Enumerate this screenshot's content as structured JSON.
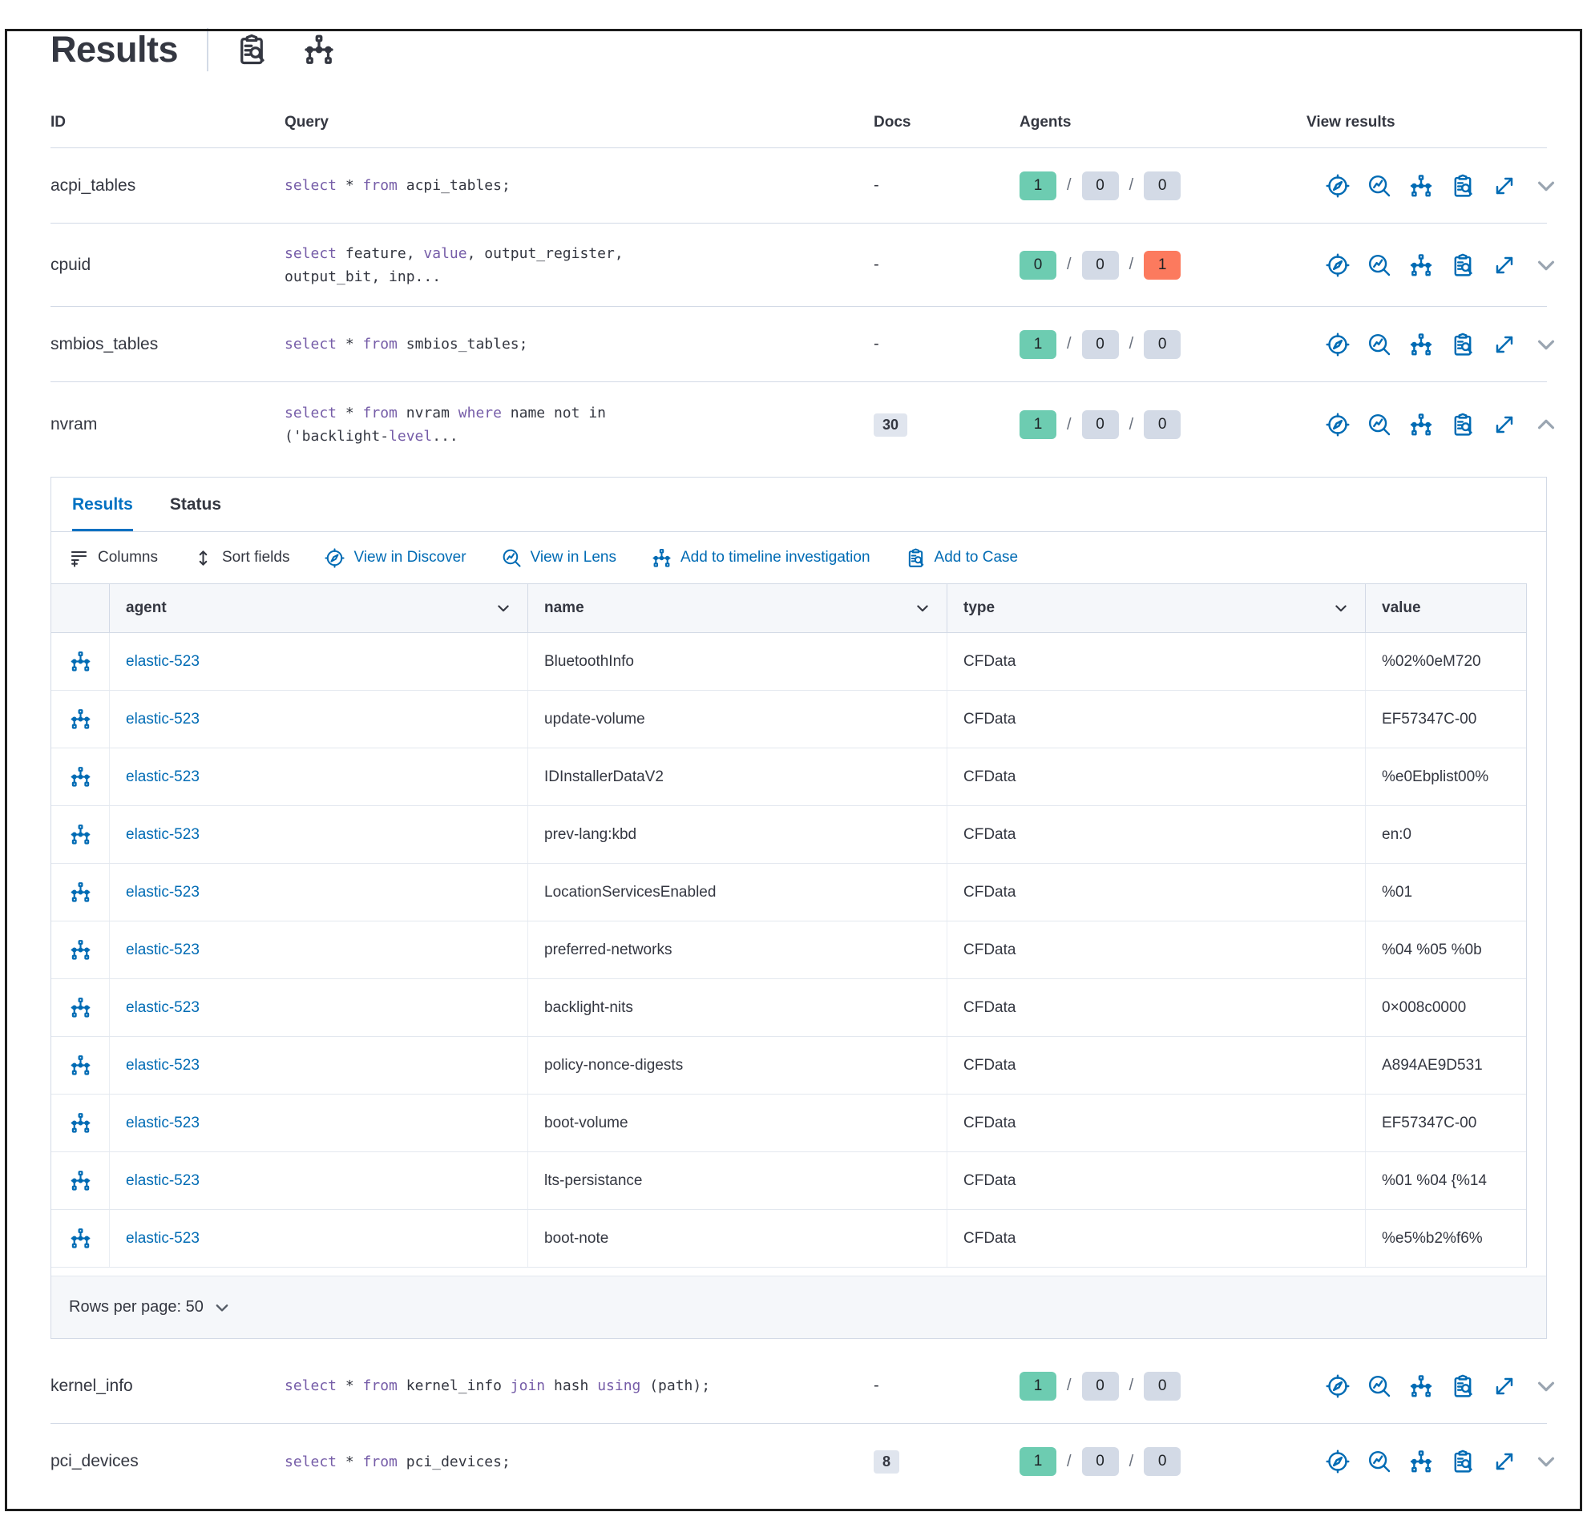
{
  "header": {
    "title": "Results",
    "icons": [
      "inspect-icon",
      "timeline-icon"
    ]
  },
  "table": {
    "columns": [
      "ID",
      "Query",
      "Docs",
      "Agents",
      "View results"
    ],
    "agents_separator": "/"
  },
  "view_results": {
    "icons": [
      "discover-compass-icon",
      "lens-icon",
      "timeline-icon",
      "add-to-case-icon",
      "expand-icon"
    ]
  },
  "queries": [
    {
      "id": "acpi_tables",
      "query_lines": [
        [
          {
            "k": "kw",
            "t": "select"
          },
          {
            "k": "tx",
            "t": " * "
          },
          {
            "k": "kw",
            "t": "from"
          },
          {
            "k": "tx",
            "t": " acpi_tables;"
          }
        ]
      ],
      "docs": {
        "text": "-",
        "badge": false
      },
      "agents": [
        {
          "count": "1",
          "color": "green"
        },
        {
          "count": "0",
          "color": "gray"
        },
        {
          "count": "0",
          "color": "gray"
        }
      ],
      "chevron": "down"
    },
    {
      "id": "cpuid",
      "query_lines": [
        [
          {
            "k": "kw",
            "t": "select"
          },
          {
            "k": "tx",
            "t": " feature, "
          },
          {
            "k": "kw",
            "t": "value"
          },
          {
            "k": "tx",
            "t": ", output_register,"
          }
        ],
        [
          {
            "k": "tx",
            "t": "output_bit, inp..."
          }
        ]
      ],
      "docs": {
        "text": "-",
        "badge": false
      },
      "agents": [
        {
          "count": "0",
          "color": "green"
        },
        {
          "count": "0",
          "color": "gray"
        },
        {
          "count": "1",
          "color": "red"
        }
      ],
      "chevron": "down"
    },
    {
      "id": "smbios_tables",
      "query_lines": [
        [
          {
            "k": "kw",
            "t": "select"
          },
          {
            "k": "tx",
            "t": " * "
          },
          {
            "k": "kw",
            "t": "from"
          },
          {
            "k": "tx",
            "t": " smbios_tables;"
          }
        ]
      ],
      "docs": {
        "text": "-",
        "badge": false
      },
      "agents": [
        {
          "count": "1",
          "color": "green"
        },
        {
          "count": "0",
          "color": "gray"
        },
        {
          "count": "0",
          "color": "gray"
        }
      ],
      "chevron": "down"
    },
    {
      "id": "nvram",
      "query_lines": [
        [
          {
            "k": "kw",
            "t": "select"
          },
          {
            "k": "tx",
            "t": " * "
          },
          {
            "k": "kw",
            "t": "from"
          },
          {
            "k": "tx",
            "t": " nvram "
          },
          {
            "k": "kw",
            "t": "where"
          },
          {
            "k": "tx",
            "t": " name not in"
          }
        ],
        [
          {
            "k": "tx",
            "t": "('backlight-"
          },
          {
            "k": "kw",
            "t": "level"
          },
          {
            "k": "tx",
            "t": "..."
          }
        ]
      ],
      "docs": {
        "text": "30",
        "badge": true
      },
      "agents": [
        {
          "count": "1",
          "color": "green"
        },
        {
          "count": "0",
          "color": "gray"
        },
        {
          "count": "0",
          "color": "gray"
        }
      ],
      "chevron": "up"
    },
    {
      "id": "kernel_info",
      "query_lines": [
        [
          {
            "k": "kw",
            "t": "select"
          },
          {
            "k": "tx",
            "t": " * "
          },
          {
            "k": "kw",
            "t": "from"
          },
          {
            "k": "tx",
            "t": " kernel_info "
          },
          {
            "k": "kw",
            "t": "join"
          },
          {
            "k": "tx",
            "t": " hash "
          },
          {
            "k": "kw",
            "t": "using"
          },
          {
            "k": "tx",
            "t": " (path);"
          }
        ]
      ],
      "docs": {
        "text": "-",
        "badge": false
      },
      "agents": [
        {
          "count": "1",
          "color": "green"
        },
        {
          "count": "0",
          "color": "gray"
        },
        {
          "count": "0",
          "color": "gray"
        }
      ],
      "chevron": "down"
    },
    {
      "id": "pci_devices",
      "query_lines": [
        [
          {
            "k": "kw",
            "t": "select"
          },
          {
            "k": "tx",
            "t": " * "
          },
          {
            "k": "kw",
            "t": "from"
          },
          {
            "k": "tx",
            "t": " pci_devices;"
          }
        ]
      ],
      "docs": {
        "text": "8",
        "badge": true
      },
      "agents": [
        {
          "count": "1",
          "color": "green"
        },
        {
          "count": "0",
          "color": "gray"
        },
        {
          "count": "0",
          "color": "gray"
        }
      ],
      "chevron": "down"
    }
  ],
  "panel": {
    "tabs": [
      {
        "label": "Results",
        "active": true
      },
      {
        "label": "Status",
        "active": false
      }
    ],
    "toolbar": [
      {
        "label": "Columns",
        "icon": "columns-icon",
        "style": "dark",
        "name": "columns-button"
      },
      {
        "label": "Sort fields",
        "icon": "sort-fields-icon",
        "style": "dark",
        "name": "sort-fields-button"
      },
      {
        "label": "View in Discover",
        "icon": "discover-compass-icon",
        "style": "blue",
        "name": "view-in-discover-button"
      },
      {
        "label": "View in Lens",
        "icon": "lens-icon",
        "style": "blue",
        "name": "view-in-lens-button"
      },
      {
        "label": "Add to timeline investigation",
        "icon": "timeline-icon",
        "style": "blue",
        "name": "add-to-timeline-button"
      },
      {
        "label": "Add to Case",
        "icon": "add-to-case-icon",
        "style": "blue",
        "name": "add-to-case-button"
      }
    ],
    "grid": {
      "row_icon": "timeline-icon",
      "columns": [
        {
          "label": "agent"
        },
        {
          "label": "name"
        },
        {
          "label": "type"
        },
        {
          "label": "value"
        }
      ],
      "rows": [
        {
          "agent": "elastic-523",
          "name": "BluetoothInfo",
          "type": "CFData",
          "value": "%02%0eM720"
        },
        {
          "agent": "elastic-523",
          "name": "update-volume",
          "type": "CFData",
          "value": "EF57347C-00"
        },
        {
          "agent": "elastic-523",
          "name": "IDInstallerDataV2",
          "type": "CFData",
          "value": "%e0Ebplist00%"
        },
        {
          "agent": "elastic-523",
          "name": "prev-lang:kbd",
          "type": "CFData",
          "value": "en:0"
        },
        {
          "agent": "elastic-523",
          "name": "LocationServicesEnabled",
          "type": "CFData",
          "value": "%01"
        },
        {
          "agent": "elastic-523",
          "name": "preferred-networks",
          "type": "CFData",
          "value": "%04 %05 %0b"
        },
        {
          "agent": "elastic-523",
          "name": "backlight-nits",
          "type": "CFData",
          "value": "0×008c0000"
        },
        {
          "agent": "elastic-523",
          "name": "policy-nonce-digests",
          "type": "CFData",
          "value": "A894AE9D531"
        },
        {
          "agent": "elastic-523",
          "name": "boot-volume",
          "type": "CFData",
          "value": "EF57347C-00"
        },
        {
          "agent": "elastic-523",
          "name": "lts-persistance",
          "type": "CFData",
          "value": "%01 %04 {%14"
        },
        {
          "agent": "elastic-523",
          "name": "boot-note",
          "type": "CFData",
          "value": "%e5%b2%f6%"
        }
      ]
    },
    "pagination": {
      "label": "Rows per page: 50"
    }
  },
  "colors": {
    "accent_blue": "#006BB4",
    "tab_blue": "#0071C2",
    "keyword_purple": "#765DA8",
    "text": "#343741",
    "badge_green": "#6DCCB1",
    "badge_gray": "#D3DAE6",
    "badge_red": "#FC7A5E",
    "border": "#D3DAE6"
  }
}
